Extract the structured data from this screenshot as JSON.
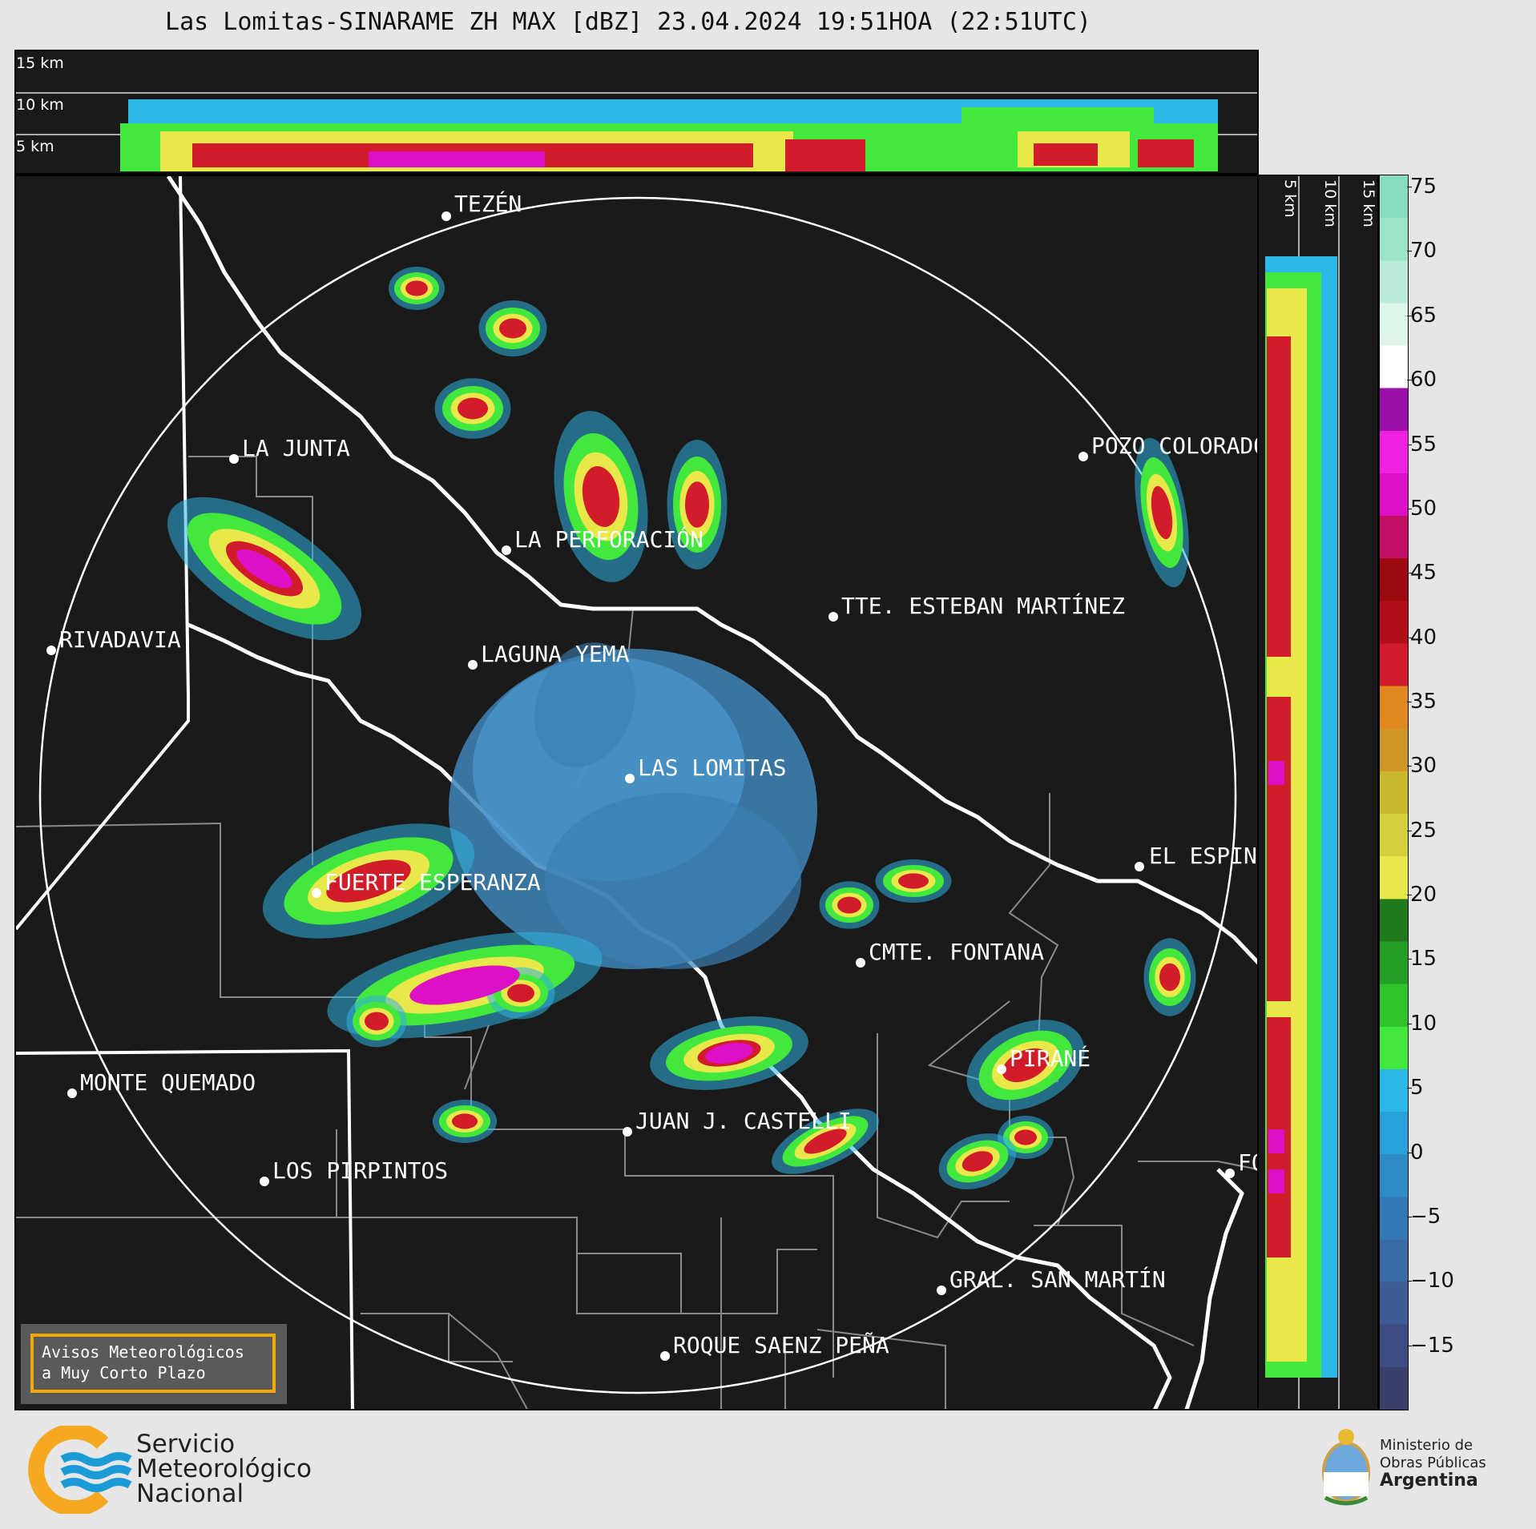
{
  "title": "Las Lomitas-SINARAME ZH MAX [dBZ] 23.04.2024 19:51HOA (22:51UTC)",
  "top_panel": {
    "height_labels": [
      "15 km",
      "10 km",
      "5 km"
    ]
  },
  "side_panel": {
    "height_labels": [
      "5 km",
      "10 km",
      "15 km"
    ]
  },
  "colorbar": {
    "ticks": [
      "75",
      "70",
      "65",
      "60",
      "55",
      "50",
      "45",
      "40",
      "35",
      "30",
      "25",
      "20",
      "15",
      "10",
      "5",
      "0",
      "−5",
      "−10",
      "−15"
    ],
    "range": [
      -20,
      76
    ],
    "colors": [
      "#3a3f6e",
      "#3f4c82",
      "#3d5b95",
      "#3a6aa7",
      "#3379b6",
      "#2d8bc6",
      "#28a0d8",
      "#2bb8e6",
      "#43e83c",
      "#2fc22c",
      "#249e23",
      "#1f7a1e",
      "#e8e84a",
      "#d4cf3a",
      "#c9b82e",
      "#cf9526",
      "#e0881f",
      "#d31c2a",
      "#b30f16",
      "#9a0a0f",
      "#c41064",
      "#dd10c8",
      "#f020e0",
      "#9a10a8",
      "#ffffff",
      "#dff5ea",
      "#b9ecd8",
      "#9be4c7",
      "#85ddbd"
    ]
  },
  "places": [
    {
      "name": "TEZÉN"
    },
    {
      "name": "LA JUNTA"
    },
    {
      "name": "POZO COLORADO"
    },
    {
      "name": "LA PERFORACIÓN"
    },
    {
      "name": "TTE. ESTEBAN MARTÍNEZ"
    },
    {
      "name": "RIVADAVIA"
    },
    {
      "name": "LAGUNA YEMA"
    },
    {
      "name": "LAS LOMITAS"
    },
    {
      "name": "EL ESPINILLO"
    },
    {
      "name": "FUERTE ESPERANZA"
    },
    {
      "name": "CMTE. FONTANA"
    },
    {
      "name": "PIRANÉ"
    },
    {
      "name": "MONTE QUEMADO"
    },
    {
      "name": "JUAN J. CASTELLI"
    },
    {
      "name": "LOS PIRPINTOS"
    },
    {
      "name": "GRAL. SAN MARTÍN"
    },
    {
      "name": "ROQUE SAENZ PEÑA"
    },
    {
      "name": "FORMOSA"
    }
  ],
  "avisos": {
    "line1": "Avisos Meteorológicos",
    "line2": "a Muy Corto Plazo"
  },
  "smn_logo": {
    "line1": "Servicio",
    "line2": "Meteorológico",
    "line3": "Nacional"
  },
  "ministry_logo": {
    "line1": "Ministerio de",
    "line2": "Obras Públicas",
    "line3": "Argentina"
  }
}
